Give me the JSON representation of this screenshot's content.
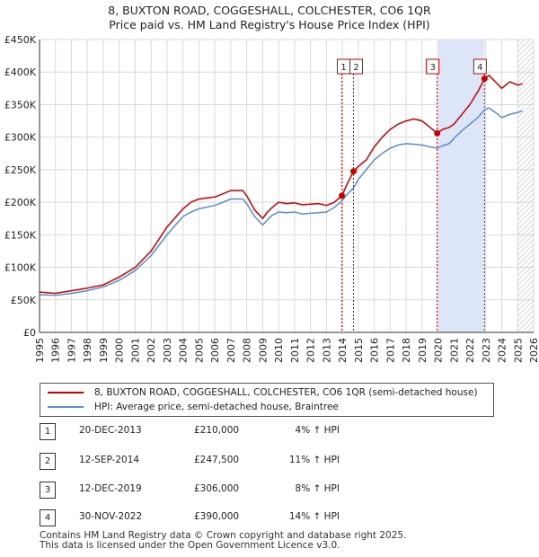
{
  "page": {
    "title_line1": "8, BUXTON ROAD, COGGESHALL, COLCHESTER, CO6 1QR",
    "title_line2": "Price paid vs. HM Land Registry's House Price Index (HPI)",
    "footer_line1": "Contains HM Land Registry data © Crown copyright and database right 2025.",
    "footer_line2": "This data is licensed under the Open Government Licence v3.0."
  },
  "colors": {
    "property_line": "#cc0000",
    "hpi_line": "#5b8ccf",
    "shade": "#dde6f8",
    "grid": "#d9d9d9",
    "marker_line": "#cc0000"
  },
  "legend": {
    "property_label": "8, BUXTON ROAD, COGGESHALL, COLCHESTER, CO6 1QR (semi-detached house)",
    "hpi_label": "HPI: Average price, semi-detached house, Braintree"
  },
  "sales": [
    {
      "num": "1",
      "date": "20-DEC-2013",
      "price": "£210,000",
      "hpi": "4% ↑ HPI"
    },
    {
      "num": "2",
      "date": "12-SEP-2014",
      "price": "£247,500",
      "hpi": "11% ↑ HPI"
    },
    {
      "num": "3",
      "date": "12-DEC-2019",
      "price": "£306,000",
      "hpi": "8% ↑ HPI"
    },
    {
      "num": "4",
      "date": "30-NOV-2022",
      "price": "£390,000",
      "hpi": "14% ↑ HPI"
    }
  ],
  "chart_data": {
    "type": "line",
    "title": "8, BUXTON ROAD, COGGESHALL, COLCHESTER, CO6 1QR",
    "subtitle": "Price paid vs. HM Land Registry's House Price Index (HPI)",
    "xlim": [
      1995,
      2026
    ],
    "ylim": [
      0,
      450000
    ],
    "x_ticks": [
      1995,
      1996,
      1997,
      1998,
      1999,
      2000,
      2001,
      2002,
      2003,
      2004,
      2005,
      2006,
      2007,
      2008,
      2009,
      2010,
      2011,
      2012,
      2013,
      2014,
      2015,
      2016,
      2017,
      2018,
      2019,
      2020,
      2021,
      2022,
      2023,
      2024,
      2025,
      2026
    ],
    "y_ticks": [
      {
        "value": 0,
        "label": "£0"
      },
      {
        "value": 50000,
        "label": "£50K"
      },
      {
        "value": 100000,
        "label": "£100K"
      },
      {
        "value": 150000,
        "label": "£150K"
      },
      {
        "value": 200000,
        "label": "£200K"
      },
      {
        "value": 250000,
        "label": "£250K"
      },
      {
        "value": 300000,
        "label": "£300K"
      },
      {
        "value": 350000,
        "label": "£350K"
      },
      {
        "value": 400000,
        "label": "£400K"
      },
      {
        "value": 450000,
        "label": "£450K"
      }
    ],
    "grid": true,
    "shaded_ranges": [
      [
        2019.95,
        2022.92
      ]
    ],
    "hatched_from": 2025.0,
    "sale_markers": [
      {
        "label": "1",
        "x": 2013.97,
        "y": 210000
      },
      {
        "label": "2",
        "x": 2014.7,
        "y": 247500
      },
      {
        "label": "3",
        "x": 2019.95,
        "y": 306000
      },
      {
        "label": "4",
        "x": 2022.92,
        "y": 390000
      }
    ],
    "series": [
      {
        "name": "8, BUXTON ROAD, COGGESHALL, COLCHESTER, CO6 1QR (semi-detached house)",
        "x": [
          1995,
          1996,
          1997,
          1998,
          1999,
          2000,
          2001,
          2002,
          2003,
          2004,
          2004.5,
          2005,
          2006,
          2007,
          2007.75,
          2008,
          2008.5,
          2009,
          2009.3,
          2009.6,
          2010,
          2010.5,
          2011,
          2011.5,
          2012,
          2012.5,
          2013,
          2013.5,
          2013.97,
          2014.3,
          2014.7,
          2015,
          2015.5,
          2016,
          2016.5,
          2017,
          2017.5,
          2018,
          2018.5,
          2019,
          2019.5,
          2019.95,
          2020.3,
          2020.7,
          2021,
          2021.5,
          2022,
          2022.5,
          2022.92,
          2023.2,
          2023.6,
          2024,
          2024.5,
          2025,
          2025.3
        ],
        "values": [
          62000,
          60000,
          64000,
          68000,
          73000,
          85000,
          100000,
          125000,
          162000,
          190000,
          200000,
          205000,
          208000,
          218000,
          218000,
          210000,
          188000,
          175000,
          185000,
          192000,
          200000,
          198000,
          199000,
          196000,
          197000,
          198000,
          195000,
          200000,
          210000,
          228000,
          247500,
          255000,
          265000,
          285000,
          300000,
          312000,
          320000,
          325000,
          328000,
          325000,
          315000,
          306000,
          312000,
          315000,
          320000,
          335000,
          350000,
          370000,
          390000,
          395000,
          385000,
          375000,
          385000,
          380000,
          382000
        ]
      },
      {
        "name": "HPI: Average price, semi-detached house, Braintree",
        "x": [
          1995,
          1996,
          1997,
          1998,
          1999,
          2000,
          2001,
          2002,
          2003,
          2004,
          2004.5,
          2005,
          2006,
          2007,
          2007.75,
          2008,
          2008.5,
          2009,
          2009.3,
          2009.6,
          2010,
          2010.5,
          2011,
          2011.5,
          2012,
          2012.5,
          2013,
          2013.5,
          2013.97,
          2014.3,
          2014.7,
          2015,
          2015.5,
          2016,
          2016.5,
          2017,
          2017.5,
          2018,
          2018.5,
          2019,
          2019.5,
          2019.95,
          2020.3,
          2020.7,
          2021,
          2021.5,
          2022,
          2022.5,
          2022.92,
          2023.2,
          2023.6,
          2024,
          2024.5,
          2025,
          2025.3
        ],
        "values": [
          58000,
          57000,
          60000,
          64000,
          70000,
          80000,
          95000,
          118000,
          150000,
          178000,
          185000,
          190000,
          195000,
          205000,
          205000,
          198000,
          178000,
          165000,
          173000,
          180000,
          185000,
          184000,
          185000,
          182000,
          183000,
          184000,
          185000,
          192000,
          202000,
          212000,
          222000,
          235000,
          250000,
          265000,
          275000,
          283000,
          288000,
          290000,
          289000,
          288000,
          285000,
          283000,
          287000,
          290000,
          298000,
          310000,
          320000,
          330000,
          342000,
          345000,
          338000,
          330000,
          335000,
          338000,
          340000
        ]
      }
    ]
  }
}
